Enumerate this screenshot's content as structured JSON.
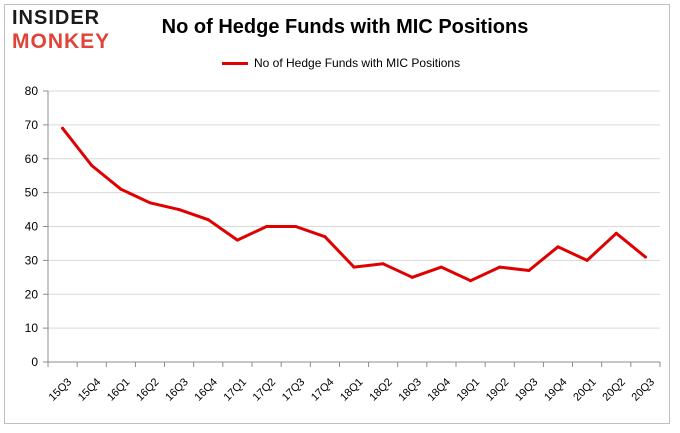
{
  "logo": {
    "word1": "INSIDER",
    "word2": "MONKEY"
  },
  "chart_data": {
    "type": "line",
    "title": "No of Hedge Funds with MIC Positions",
    "xlabel": "",
    "ylabel": "",
    "categories": [
      "15Q3",
      "15Q4",
      "16Q1",
      "16Q2",
      "16Q3",
      "16Q4",
      "17Q1",
      "17Q2",
      "17Q3",
      "17Q4",
      "18Q1",
      "18Q2",
      "18Q3",
      "18Q4",
      "19Q1",
      "19Q2",
      "19Q3",
      "19Q4",
      "20Q1",
      "20Q2",
      "20Q3"
    ],
    "series": [
      {
        "name": "No of Hedge Funds with MIC Positions",
        "values": [
          69,
          58,
          51,
          47,
          45,
          42,
          36,
          40,
          40,
          37,
          28,
          29,
          25,
          28,
          24,
          28,
          27,
          34,
          30,
          38,
          31
        ],
        "color": "#e00000"
      }
    ],
    "ylim": [
      0,
      80
    ],
    "yticks": [
      0,
      10,
      20,
      30,
      40,
      50,
      60,
      70,
      80
    ],
    "grid": true,
    "legend_position": "top-center"
  }
}
